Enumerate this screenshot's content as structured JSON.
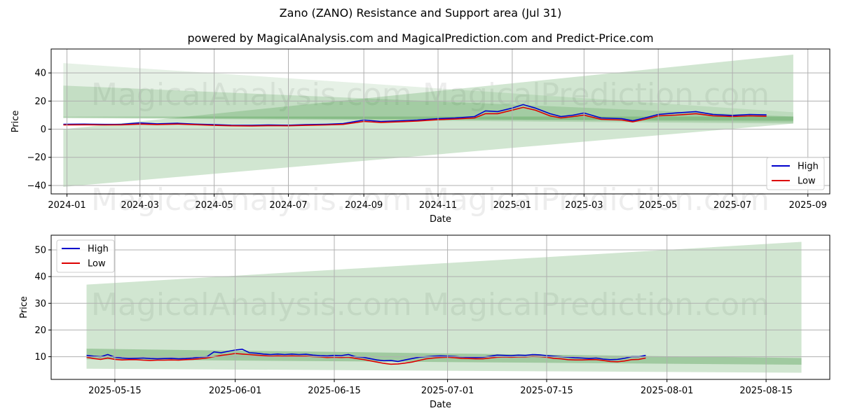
{
  "title": "Zano (ZANO) Resistance and Support area (Jul 31)",
  "subtitle": "powered by MagicalAnalysis.com and MagicalPrediction.com and Predict-Price.com",
  "watermarks": [
    "MagicalAnalysis.com",
    "MagicalPrediction.com"
  ],
  "colors": {
    "high": "#0000cc",
    "low": "#dd0000",
    "band": "#2e8b2e",
    "grid": "#b0b0b0"
  },
  "chart_data": [
    {
      "type": "line",
      "xlabel": "Date",
      "ylabel": "Price",
      "grid": true,
      "legend_position": "bottom-right",
      "xlim": [
        "2023-12-19",
        "2025-09-19"
      ],
      "ylim": [
        -46,
        57
      ],
      "x_ticks": [
        "2024-01",
        "2024-03",
        "2024-05",
        "2024-07",
        "2024-09",
        "2024-11",
        "2025-01",
        "2025-03",
        "2025-05",
        "2025-07",
        "2025-09"
      ],
      "y_ticks": [
        -40,
        -20,
        0,
        20,
        40
      ],
      "bands": [
        {
          "x": [
            "2023-12-29",
            "2025-08-20"
          ],
          "upper": [
            47,
            12
          ],
          "lower": [
            9,
            5
          ],
          "opacity": 0.12
        },
        {
          "x": [
            "2023-12-29",
            "2025-08-20"
          ],
          "upper": [
            31,
            9
          ],
          "lower": [
            8,
            4
          ],
          "opacity": 0.18
        },
        {
          "x": [
            "2023-12-29",
            "2025-08-20"
          ],
          "upper": [
            0,
            53
          ],
          "lower": [
            -41,
            4
          ],
          "opacity": 0.22
        },
        {
          "x": [
            "2023-12-29",
            "2025-08-20"
          ],
          "upper": [
            9,
            9
          ],
          "lower": [
            8,
            6
          ],
          "opacity": 0.25
        }
      ],
      "series": [
        {
          "name": "High",
          "x": [
            "2023-12-29",
            "2024-01-15",
            "2024-02-01",
            "2024-02-15",
            "2024-03-01",
            "2024-03-15",
            "2024-04-01",
            "2024-04-15",
            "2024-05-01",
            "2024-05-15",
            "2024-06-01",
            "2024-06-15",
            "2024-07-01",
            "2024-07-15",
            "2024-08-01",
            "2024-08-15",
            "2024-09-01",
            "2024-09-15",
            "2024-10-01",
            "2024-10-15",
            "2024-11-01",
            "2024-11-15",
            "2024-12-01",
            "2024-12-10",
            "2024-12-20",
            "2025-01-01",
            "2025-01-10",
            "2025-01-20",
            "2025-02-01",
            "2025-02-10",
            "2025-02-20",
            "2025-03-01",
            "2025-03-15",
            "2025-04-01",
            "2025-04-10",
            "2025-04-20",
            "2025-05-01",
            "2025-05-15",
            "2025-06-01",
            "2025-06-15",
            "2025-07-01",
            "2025-07-15",
            "2025-07-29"
          ],
          "values": [
            3.5,
            3.6,
            3.4,
            3.5,
            4.5,
            3.8,
            4.2,
            3.6,
            3.2,
            2.8,
            2.7,
            3.0,
            2.8,
            3.2,
            3.5,
            4.0,
            6.5,
            5.5,
            6.0,
            6.5,
            7.5,
            8.0,
            9.0,
            13.0,
            12.5,
            15.0,
            17.5,
            15.0,
            11.0,
            9.0,
            10.0,
            11.5,
            8.0,
            7.5,
            6.0,
            8.0,
            10.5,
            11.5,
            12.5,
            10.5,
            9.8,
            10.5,
            10.2
          ]
        },
        {
          "name": "Low",
          "x": [
            "2023-12-29",
            "2024-01-15",
            "2024-02-01",
            "2024-02-15",
            "2024-03-01",
            "2024-03-15",
            "2024-04-01",
            "2024-04-15",
            "2024-05-01",
            "2024-05-15",
            "2024-06-01",
            "2024-06-15",
            "2024-07-01",
            "2024-07-15",
            "2024-08-01",
            "2024-08-15",
            "2024-09-01",
            "2024-09-15",
            "2024-10-01",
            "2024-10-15",
            "2024-11-01",
            "2024-11-15",
            "2024-12-01",
            "2024-12-10",
            "2024-12-20",
            "2025-01-01",
            "2025-01-10",
            "2025-01-20",
            "2025-02-01",
            "2025-02-10",
            "2025-02-20",
            "2025-03-01",
            "2025-03-15",
            "2025-04-01",
            "2025-04-10",
            "2025-04-20",
            "2025-05-01",
            "2025-05-15",
            "2025-06-01",
            "2025-06-15",
            "2025-07-01",
            "2025-07-15",
            "2025-07-29"
          ],
          "values": [
            3.0,
            3.1,
            3.0,
            3.1,
            3.6,
            3.3,
            3.6,
            3.2,
            2.7,
            2.4,
            2.3,
            2.5,
            2.4,
            2.7,
            3.0,
            3.4,
            5.5,
            4.8,
            5.3,
            5.8,
            6.8,
            7.2,
            8.0,
            11.0,
            11.0,
            13.5,
            15.5,
            13.5,
            9.5,
            8.0,
            9.0,
            10.0,
            7.0,
            6.5,
            5.2,
            7.0,
            9.5,
            10.0,
            11.0,
            9.5,
            9.0,
            9.5,
            9.2
          ]
        }
      ]
    },
    {
      "type": "line",
      "xlabel": "Date",
      "ylabel": "Price",
      "grid": true,
      "legend_position": "top-left",
      "xlim": [
        "2025-05-06",
        "2025-08-24"
      ],
      "ylim": [
        1.5,
        55.5
      ],
      "x_ticks": [
        "2025-05-15",
        "2025-06-01",
        "2025-06-15",
        "2025-07-01",
        "2025-07-15",
        "2025-08-01",
        "2025-08-15"
      ],
      "y_ticks": [
        10,
        20,
        30,
        40,
        50
      ],
      "bands": [
        {
          "x": [
            "2025-05-11",
            "2025-08-20"
          ],
          "upper": [
            37,
            53
          ],
          "lower": [
            5.5,
            4
          ],
          "opacity": 0.22
        },
        {
          "x": [
            "2025-05-11",
            "2025-08-20"
          ],
          "upper": [
            13,
            9.5
          ],
          "lower": [
            9,
            7
          ],
          "opacity": 0.3
        }
      ],
      "series": [
        {
          "name": "High",
          "x": [
            "2025-05-11",
            "2025-05-12",
            "2025-05-13",
            "2025-05-14",
            "2025-05-15",
            "2025-05-16",
            "2025-05-17",
            "2025-05-18",
            "2025-05-19",
            "2025-05-20",
            "2025-05-21",
            "2025-05-22",
            "2025-05-23",
            "2025-05-24",
            "2025-05-25",
            "2025-05-26",
            "2025-05-27",
            "2025-05-28",
            "2025-05-29",
            "2025-05-30",
            "2025-05-31",
            "2025-06-01",
            "2025-06-02",
            "2025-06-03",
            "2025-06-04",
            "2025-06-05",
            "2025-06-06",
            "2025-06-07",
            "2025-06-08",
            "2025-06-09",
            "2025-06-10",
            "2025-06-11",
            "2025-06-12",
            "2025-06-13",
            "2025-06-14",
            "2025-06-15",
            "2025-06-16",
            "2025-06-17",
            "2025-06-18",
            "2025-06-19",
            "2025-06-20",
            "2025-06-21",
            "2025-06-22",
            "2025-06-23",
            "2025-06-24",
            "2025-06-25",
            "2025-06-26",
            "2025-06-27",
            "2025-06-28",
            "2025-06-29",
            "2025-06-30",
            "2025-07-01",
            "2025-07-02",
            "2025-07-03",
            "2025-07-04",
            "2025-07-05",
            "2025-07-06",
            "2025-07-07",
            "2025-07-08",
            "2025-07-09",
            "2025-07-10",
            "2025-07-11",
            "2025-07-12",
            "2025-07-13",
            "2025-07-14",
            "2025-07-15",
            "2025-07-16",
            "2025-07-17",
            "2025-07-18",
            "2025-07-19",
            "2025-07-20",
            "2025-07-21",
            "2025-07-22",
            "2025-07-23",
            "2025-07-24",
            "2025-07-25",
            "2025-07-26",
            "2025-07-27",
            "2025-07-28",
            "2025-07-29"
          ],
          "values": [
            10.5,
            10.2,
            10.0,
            10.8,
            9.8,
            9.5,
            9.3,
            9.4,
            9.5,
            9.3,
            9.2,
            9.3,
            9.4,
            9.2,
            9.3,
            9.5,
            9.8,
            10.0,
            11.8,
            11.5,
            12.0,
            12.5,
            12.8,
            11.5,
            11.3,
            11.0,
            10.8,
            11.0,
            10.8,
            11.0,
            10.8,
            10.9,
            10.6,
            10.4,
            10.3,
            10.5,
            10.4,
            10.8,
            10.0,
            9.8,
            9.3,
            8.8,
            8.5,
            8.6,
            8.2,
            8.8,
            9.3,
            9.8,
            10.0,
            10.2,
            10.3,
            10.2,
            10.1,
            9.9,
            9.8,
            9.7,
            9.8,
            10.2,
            10.6,
            10.5,
            10.4,
            10.6,
            10.5,
            10.8,
            10.7,
            10.4,
            10.2,
            10.0,
            9.8,
            9.6,
            9.5,
            9.3,
            9.5,
            9.1,
            8.9,
            9.0,
            9.4,
            10.0,
            10.0,
            10.5
          ]
        },
        {
          "name": "Low",
          "x": [
            "2025-05-11",
            "2025-05-12",
            "2025-05-13",
            "2025-05-14",
            "2025-05-15",
            "2025-05-16",
            "2025-05-17",
            "2025-05-18",
            "2025-05-19",
            "2025-05-20",
            "2025-05-21",
            "2025-05-22",
            "2025-05-23",
            "2025-05-24",
            "2025-05-25",
            "2025-05-26",
            "2025-05-27",
            "2025-05-28",
            "2025-05-29",
            "2025-05-30",
            "2025-05-31",
            "2025-06-01",
            "2025-06-02",
            "2025-06-03",
            "2025-06-04",
            "2025-06-05",
            "2025-06-06",
            "2025-06-07",
            "2025-06-08",
            "2025-06-09",
            "2025-06-10",
            "2025-06-11",
            "2025-06-12",
            "2025-06-13",
            "2025-06-14",
            "2025-06-15",
            "2025-06-16",
            "2025-06-17",
            "2025-06-18",
            "2025-06-19",
            "2025-06-20",
            "2025-06-21",
            "2025-06-22",
            "2025-06-23",
            "2025-06-24",
            "2025-06-25",
            "2025-06-26",
            "2025-06-27",
            "2025-06-28",
            "2025-06-29",
            "2025-06-30",
            "2025-07-01",
            "2025-07-02",
            "2025-07-03",
            "2025-07-04",
            "2025-07-05",
            "2025-07-06",
            "2025-07-07",
            "2025-07-08",
            "2025-07-09",
            "2025-07-10",
            "2025-07-11",
            "2025-07-12",
            "2025-07-13",
            "2025-07-14",
            "2025-07-15",
            "2025-07-16",
            "2025-07-17",
            "2025-07-18",
            "2025-07-19",
            "2025-07-20",
            "2025-07-21",
            "2025-07-22",
            "2025-07-23",
            "2025-07-24",
            "2025-07-25",
            "2025-07-26",
            "2025-07-27",
            "2025-07-28",
            "2025-07-29"
          ],
          "values": [
            9.8,
            9.3,
            9.0,
            9.5,
            9.0,
            8.8,
            8.9,
            8.9,
            8.7,
            8.6,
            8.7,
            8.7,
            8.8,
            8.7,
            8.9,
            9.0,
            9.2,
            9.5,
            10.0,
            10.5,
            10.8,
            11.2,
            11.0,
            10.8,
            10.6,
            10.4,
            10.2,
            10.3,
            10.2,
            10.3,
            10.2,
            10.2,
            10.0,
            9.9,
            9.7,
            9.8,
            9.7,
            9.8,
            9.4,
            9.0,
            8.5,
            8.0,
            7.5,
            7.2,
            7.3,
            7.6,
            8.0,
            8.6,
            9.2,
            9.5,
            9.7,
            9.8,
            9.6,
            9.4,
            9.3,
            9.2,
            9.2,
            9.5,
            9.8,
            9.9,
            9.8,
            9.9,
            9.9,
            10.1,
            10.0,
            9.8,
            9.4,
            9.2,
            8.9,
            8.8,
            8.8,
            8.9,
            8.9,
            8.6,
            8.2,
            8.1,
            8.4,
            8.9,
            9.0,
            9.5
          ]
        }
      ]
    }
  ]
}
